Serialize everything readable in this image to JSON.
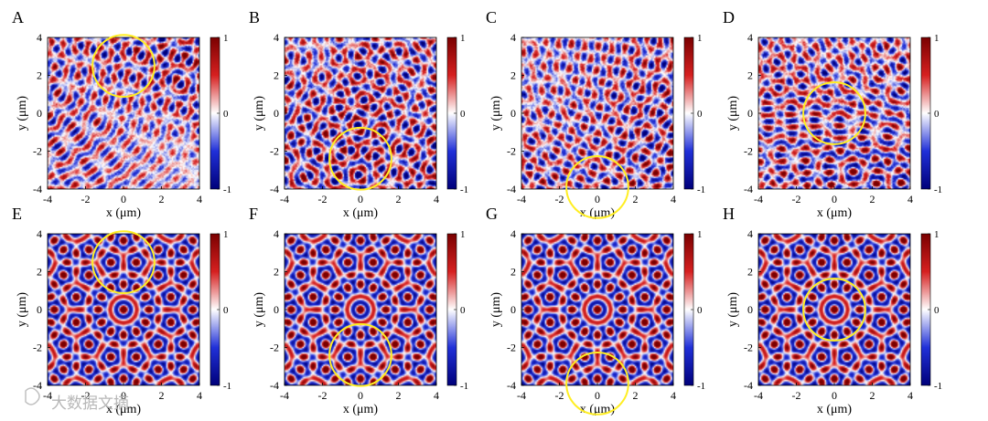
{
  "watermark": "大数据文摘",
  "colorbar": {
    "ticks": [
      1,
      0,
      -1
    ],
    "tick_labels": [
      "1",
      "0",
      "-1"
    ],
    "colors": [
      "#7a0000",
      "#d62020",
      "#ffffff",
      "#2030d8",
      "#00007a"
    ]
  },
  "circle_color": "#ffee22",
  "chart_data": [
    {
      "type": "heatmap",
      "panel": "A",
      "xlabel": "x (μm)",
      "ylabel": "y (μm)",
      "xlim": [
        -4,
        4
      ],
      "ylim": [
        -4,
        4
      ],
      "xticks": [
        -4,
        -2,
        0,
        2,
        4
      ],
      "yticks": [
        -4,
        -2,
        0,
        2,
        4
      ],
      "zlim": [
        -1,
        1
      ],
      "ordered": false,
      "circle": {
        "cx": 0,
        "cy": 2.5,
        "r": 1.6
      }
    },
    {
      "type": "heatmap",
      "panel": "B",
      "xlabel": "x (μm)",
      "ylabel": "y (μm)",
      "xlim": [
        -4,
        4
      ],
      "ylim": [
        -4,
        4
      ],
      "xticks": [
        -4,
        -2,
        0,
        2,
        4
      ],
      "yticks": [
        -4,
        -2,
        0,
        2,
        4
      ],
      "zlim": [
        -1,
        1
      ],
      "ordered": false,
      "circle": {
        "cx": 0,
        "cy": -2.4,
        "r": 1.6
      }
    },
    {
      "type": "heatmap",
      "panel": "C",
      "xlabel": "x (μm)",
      "ylabel": "y (μm)",
      "xlim": [
        -4,
        4
      ],
      "ylim": [
        -4,
        4
      ],
      "xticks": [
        -4,
        -2,
        0,
        2,
        4
      ],
      "yticks": [
        -4,
        -2,
        0,
        2,
        4
      ],
      "zlim": [
        -1,
        1
      ],
      "ordered": false,
      "circle": {
        "cx": 0,
        "cy": -3.9,
        "r": 1.6
      }
    },
    {
      "type": "heatmap",
      "panel": "D",
      "xlabel": "x (μm)",
      "ylabel": "y (μm)",
      "xlim": [
        -4,
        4
      ],
      "ylim": [
        -4,
        4
      ],
      "xticks": [
        -4,
        -2,
        0,
        2,
        4
      ],
      "yticks": [
        -4,
        -2,
        0,
        2,
        4
      ],
      "zlim": [
        -1,
        1
      ],
      "ordered": false,
      "circle": {
        "cx": 0,
        "cy": 0,
        "r": 1.6
      }
    },
    {
      "type": "heatmap",
      "panel": "E",
      "xlabel": "x (μm)",
      "ylabel": "y (μm)",
      "xlim": [
        -4,
        4
      ],
      "ylim": [
        -4,
        4
      ],
      "xticks": [
        -4,
        -2,
        0,
        2,
        4
      ],
      "yticks": [
        -4,
        -2,
        0,
        2,
        4
      ],
      "zlim": [
        -1,
        1
      ],
      "ordered": true,
      "circle": {
        "cx": 0,
        "cy": 2.5,
        "r": 1.6
      }
    },
    {
      "type": "heatmap",
      "panel": "F",
      "xlabel": "x (μm)",
      "ylabel": "y (μm)",
      "xlim": [
        -4,
        4
      ],
      "ylim": [
        -4,
        4
      ],
      "xticks": [
        -4,
        -2,
        0,
        2,
        4
      ],
      "yticks": [
        -4,
        -2,
        0,
        2,
        4
      ],
      "zlim": [
        -1,
        1
      ],
      "ordered": true,
      "circle": {
        "cx": 0,
        "cy": -2.4,
        "r": 1.6
      }
    },
    {
      "type": "heatmap",
      "panel": "G",
      "xlabel": "x (μm)",
      "ylabel": "y (μm)",
      "xlim": [
        -4,
        4
      ],
      "ylim": [
        -4,
        4
      ],
      "xticks": [
        -4,
        -2,
        0,
        2,
        4
      ],
      "yticks": [
        -4,
        -2,
        0,
        2,
        4
      ],
      "zlim": [
        -1,
        1
      ],
      "ordered": true,
      "circle": {
        "cx": 0,
        "cy": -3.9,
        "r": 1.6
      }
    },
    {
      "type": "heatmap",
      "panel": "H",
      "xlabel": "x (μm)",
      "ylabel": "y (μm)",
      "xlim": [
        -4,
        4
      ],
      "ylim": [
        -4,
        4
      ],
      "xticks": [
        -4,
        -2,
        0,
        2,
        4
      ],
      "yticks": [
        -4,
        -2,
        0,
        2,
        4
      ],
      "zlim": [
        -1,
        1
      ],
      "ordered": true,
      "circle": {
        "cx": 0,
        "cy": 0,
        "r": 1.6
      }
    }
  ]
}
